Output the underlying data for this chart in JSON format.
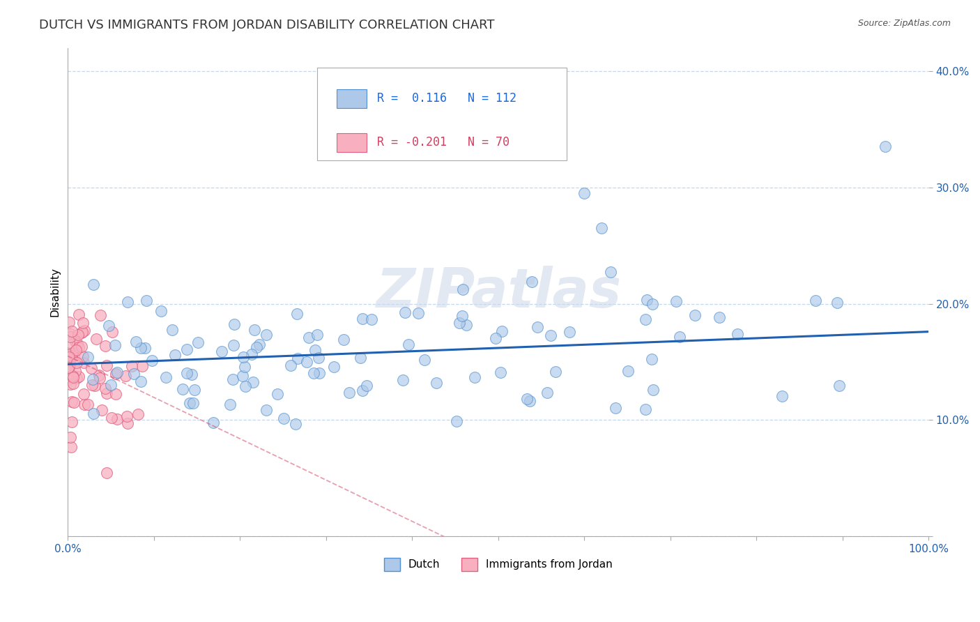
{
  "title": "DUTCH VS IMMIGRANTS FROM JORDAN DISABILITY CORRELATION CHART",
  "source_text": "Source: ZipAtlas.com",
  "ylabel": "Disability",
  "xlim": [
    0.0,
    1.0
  ],
  "ylim": [
    0.0,
    0.42
  ],
  "xticks": [
    0.0,
    0.1,
    0.2,
    0.3,
    0.4,
    0.5,
    0.6,
    0.7,
    0.8,
    0.9,
    1.0
  ],
  "yticks": [
    0.0,
    0.1,
    0.2,
    0.3,
    0.4
  ],
  "ytick_labels": [
    "",
    "10.0%",
    "20.0%",
    "30.0%",
    "40.0%"
  ],
  "dutch_R": 0.116,
  "dutch_N": 112,
  "jordan_R": -0.201,
  "jordan_N": 70,
  "dutch_color": "#adc8e8",
  "dutch_edge_color": "#5090d0",
  "dutch_line_color": "#2060b0",
  "jordan_color": "#f8b0c0",
  "jordan_edge_color": "#e06080",
  "jordan_line_color": "#d04060",
  "background_color": "#ffffff",
  "grid_color": "#c0d4e8",
  "watermark": "ZIPatlas",
  "legend_R_color_dutch": "#1a6adb",
  "legend_R_color_jordan": "#d04060",
  "legend_label1": "Dutch",
  "legend_label2": "Immigrants from Jordan",
  "title_fontsize": 13,
  "axis_label_fontsize": 11,
  "tick_fontsize": 11,
  "source_fontsize": 9
}
